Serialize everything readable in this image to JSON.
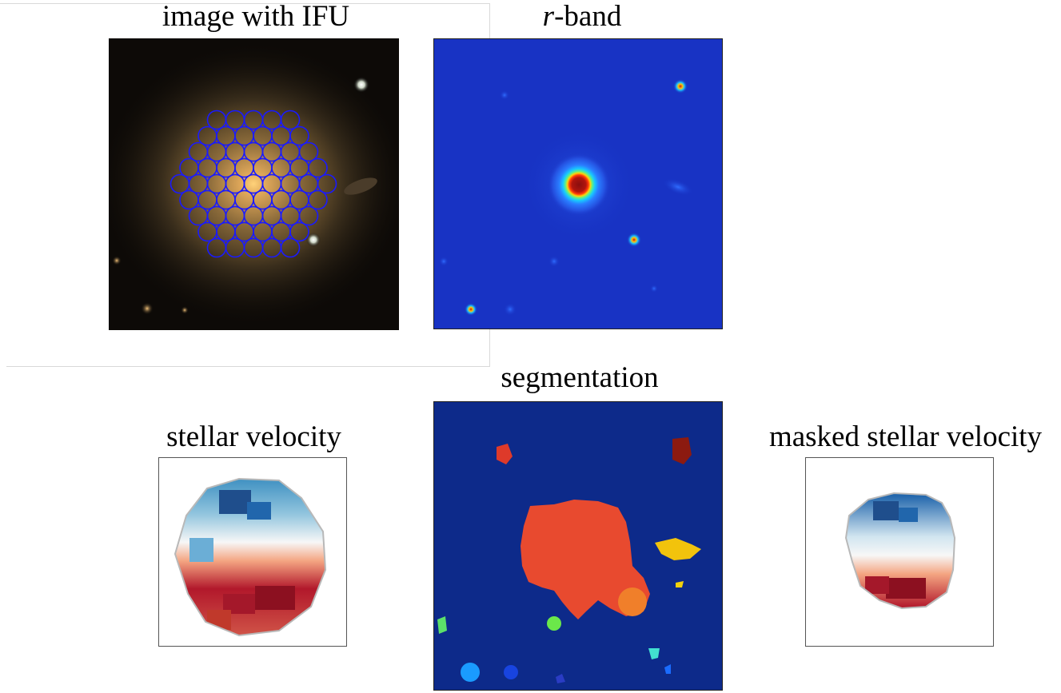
{
  "panels": {
    "image_ifu": {
      "title": "image with IFU"
    },
    "rband": {
      "title_italic": "r",
      "title_rest": "-band"
    },
    "segmentation": {
      "title": "segmentation"
    },
    "stellar_velocity": {
      "title": "stellar velocity"
    },
    "masked_velocity": {
      "title": "masked stellar velocity"
    }
  },
  "colors": {
    "ifu_fiber": "#1a1aff",
    "rband_bg": "#1833c4",
    "seg_bg": "#0d2a8a",
    "seg_main": "#e84a2f",
    "vel_blue": "#2166ac",
    "vel_red": "#b2182b"
  }
}
